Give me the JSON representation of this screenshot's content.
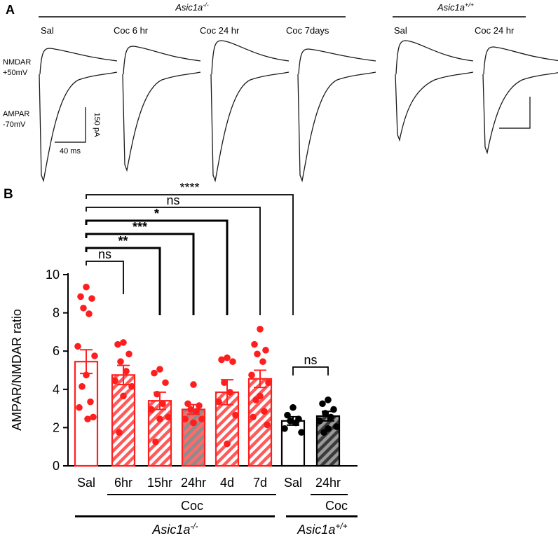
{
  "panel_a": {
    "panel_label": "A",
    "ko_group": {
      "name": "Asic1a",
      "sup": "-/-"
    },
    "wt_group": {
      "name": "Asic1a",
      "sup": "+/+"
    },
    "conditions": [
      "Sal",
      "Coc 6 hr",
      "Coc 24 hr",
      "Coc 7days",
      "Sal",
      "Coc 24 hr"
    ],
    "nmdar_label": [
      "NMDAR",
      "+50mV"
    ],
    "ampar_label": [
      "AMPAR",
      "-70mV"
    ],
    "scale_y_label": "150 pA",
    "scale_x_label": "40 ms"
  },
  "chart_data": {
    "type": "bar",
    "panel_label": "B",
    "ylabel": "AMPAR/NMDAR ratio",
    "ylim": [
      0,
      10
    ],
    "yticks": [
      0,
      2,
      4,
      6,
      8,
      10
    ],
    "categories": [
      "Sal",
      "6hr",
      "15hr",
      "24hr",
      "4d",
      "7d",
      "Sal",
      "24hr"
    ],
    "genotype": [
      "Asic1a-/-",
      "Asic1a-/-",
      "Asic1a-/-",
      "Asic1a-/-",
      "Asic1a-/-",
      "Asic1a-/-",
      "Asic1a+/+",
      "Asic1a+/+"
    ],
    "treatment_group_label": "Coc",
    "genotype_labels": [
      {
        "name": "Asic1a",
        "sup": "-/-"
      },
      {
        "name": "Asic1a",
        "sup": "+/+"
      }
    ],
    "bars": [
      {
        "category": "Sal",
        "mean": 5.45,
        "sem": 0.62,
        "style": "open",
        "color": "#ff2020",
        "points": [
          9.35,
          8.85,
          8.75,
          8.25,
          7.95,
          6.25,
          5.75,
          4.75,
          4.15,
          3.35,
          3.05,
          2.55,
          2.45
        ]
      },
      {
        "category": "6hr",
        "mean": 4.75,
        "sem": 0.5,
        "style": "hatched",
        "color": "#ff2020",
        "points": [
          6.45,
          6.35,
          5.85,
          5.45,
          4.95,
          4.45,
          4.15,
          3.65,
          1.75
        ]
      },
      {
        "category": "15hr",
        "mean": 3.4,
        "sem": 0.45,
        "style": "hatched",
        "color": "#ff2020",
        "points": [
          5.05,
          4.85,
          4.35,
          3.75,
          3.25,
          2.95,
          2.55,
          2.45,
          1.25
        ]
      },
      {
        "category": "24hr",
        "mean": 2.95,
        "sem": 0.25,
        "style": "hatched-gray",
        "color": "#ff2020",
        "points": [
          4.25,
          3.25,
          3.15,
          2.95,
          2.85,
          2.45,
          2.45,
          2.25
        ]
      },
      {
        "category": "4d",
        "mean": 3.85,
        "sem": 0.65,
        "style": "hatched",
        "color": "#ff2020",
        "points": [
          5.65,
          5.55,
          5.45,
          4.35,
          3.85,
          3.35,
          2.65,
          1.15
        ]
      },
      {
        "category": "7d",
        "mean": 4.55,
        "sem": 0.45,
        "style": "hatched",
        "color": "#ff2020",
        "points": [
          7.15,
          6.35,
          6.05,
          5.85,
          5.45,
          4.75,
          4.35,
          3.65,
          3.45,
          2.85,
          2.55,
          2.15
        ]
      },
      {
        "category": "Sal",
        "mean": 2.35,
        "sem": 0.22,
        "style": "open",
        "color": "#000000",
        "points": [
          3.05,
          2.65,
          2.45,
          2.35,
          2.25,
          1.95,
          1.75
        ]
      },
      {
        "category": "24hr",
        "mean": 2.6,
        "sem": 0.25,
        "style": "hatched-gray",
        "color": "#000000",
        "points": [
          3.45,
          3.25,
          2.95,
          2.75,
          2.55,
          2.35,
          2.05,
          1.95,
          1.75
        ]
      }
    ],
    "comparisons": [
      {
        "from": 0,
        "to": 1,
        "label": "ns",
        "bold": false
      },
      {
        "from": 0,
        "to": 2,
        "label": "**",
        "bold": true
      },
      {
        "from": 0,
        "to": 3,
        "label": "***",
        "bold": true
      },
      {
        "from": 0,
        "to": 4,
        "label": "*",
        "bold": true
      },
      {
        "from": 0,
        "to": 5,
        "label": "ns",
        "bold": false
      },
      {
        "from": 0,
        "to": 6,
        "label": "****",
        "bold": false
      },
      {
        "from": 6,
        "to": 7,
        "label": "ns",
        "bold": false
      }
    ]
  }
}
